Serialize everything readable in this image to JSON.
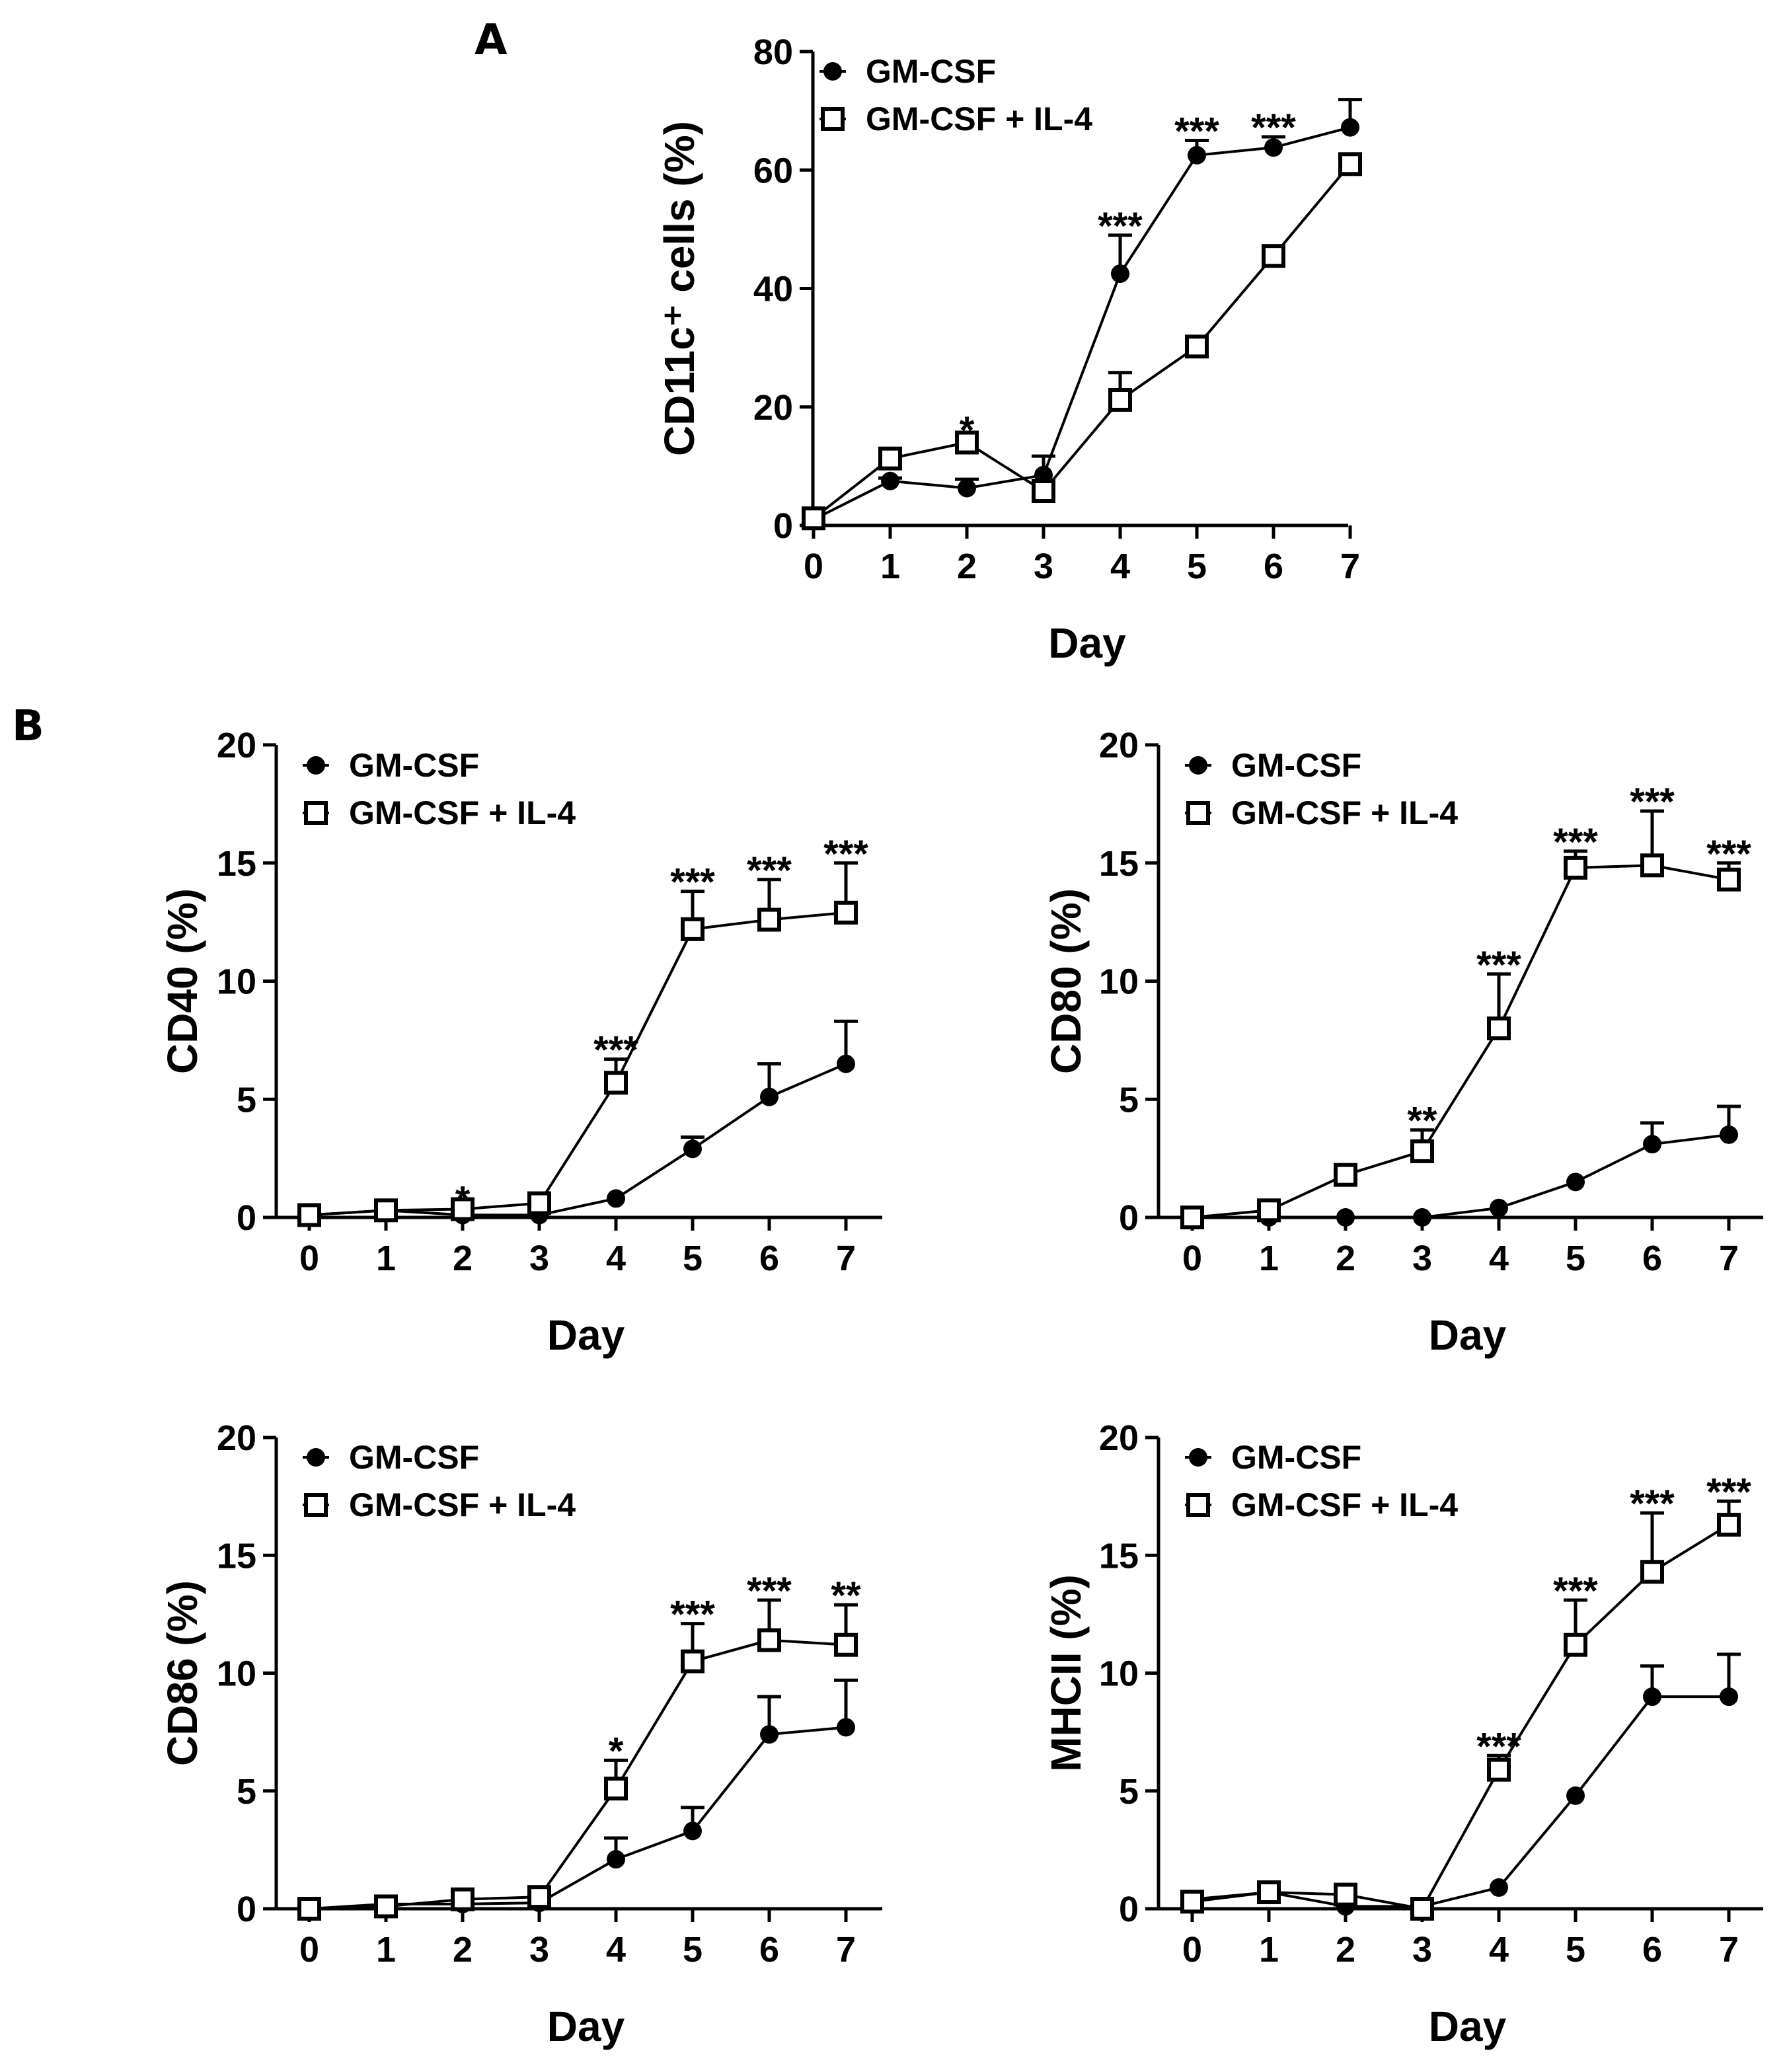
{
  "figure": {
    "panel_a_label": "A",
    "panel_b_label": "B"
  },
  "colors": {
    "ink": "#000000",
    "background": "#ffffff"
  },
  "chart_data": [
    {
      "id": "cd11c",
      "type": "line",
      "panel": "A",
      "xlabel": "Day",
      "ylabel": "CD11c⁺ cells (%)",
      "ylim": [
        0,
        80
      ],
      "yticks": [
        0,
        20,
        40,
        60,
        80
      ],
      "x": [
        0,
        1,
        2,
        3,
        4,
        5,
        6,
        7
      ],
      "series": [
        {
          "name": "GM-CSF",
          "marker": "filled-circle",
          "values": [
            1,
            7.5,
            6.3,
            8.5,
            42.5,
            62.5,
            63.8,
            67.2
          ],
          "errors": [
            0.5,
            0.5,
            1.5,
            3.2,
            6.5,
            2.5,
            1.8,
            4.7
          ]
        },
        {
          "name": "GM-CSF + IL-4",
          "marker": "open-square",
          "values": [
            1.2,
            11.3,
            14,
            5.8,
            21.2,
            30.2,
            45.5,
            61
          ],
          "errors": [
            0.5,
            0.5,
            0.5,
            0.5,
            4.6,
            1.5,
            0.5,
            0.5
          ]
        }
      ],
      "annotations": [
        {
          "x": 2,
          "text": "*"
        },
        {
          "x": 4,
          "text": "***"
        },
        {
          "x": 5,
          "text": "***"
        },
        {
          "x": 6,
          "text": "***"
        }
      ]
    },
    {
      "id": "cd40",
      "type": "line",
      "panel": "B",
      "xlabel": "Day",
      "ylabel": "CD40 (%)",
      "ylim": [
        0,
        20
      ],
      "yticks": [
        0,
        5,
        10,
        15,
        20
      ],
      "x": [
        0,
        1,
        2,
        3,
        4,
        5,
        6,
        7
      ],
      "series": [
        {
          "name": "GM-CSF",
          "marker": "filled-circle",
          "values": [
            0.1,
            0.3,
            0.1,
            0.1,
            0.8,
            2.9,
            5.1,
            6.5
          ],
          "errors": [
            0,
            0,
            0,
            0,
            0,
            0.5,
            1.4,
            1.8
          ]
        },
        {
          "name": "GM-CSF + IL-4",
          "marker": "open-square",
          "values": [
            0.1,
            0.3,
            0.35,
            0.6,
            5.7,
            12.2,
            12.6,
            12.9
          ],
          "errors": [
            0,
            0,
            0,
            0,
            1.0,
            1.6,
            1.7,
            2.1
          ]
        }
      ],
      "annotations": [
        {
          "x": 2,
          "text": "*"
        },
        {
          "x": 4,
          "text": "***"
        },
        {
          "x": 5,
          "text": "***"
        },
        {
          "x": 6,
          "text": "***"
        },
        {
          "x": 7,
          "text": "***"
        }
      ]
    },
    {
      "id": "cd80",
      "type": "line",
      "panel": "B",
      "xlabel": "Day",
      "ylabel": "CD80 (%)",
      "ylim": [
        0,
        20
      ],
      "yticks": [
        0,
        5,
        10,
        15,
        20
      ],
      "x": [
        0,
        1,
        2,
        3,
        4,
        5,
        6,
        7
      ],
      "series": [
        {
          "name": "GM-CSF",
          "marker": "filled-circle",
          "values": [
            0,
            0,
            0,
            0,
            0.4,
            1.5,
            3.1,
            3.5
          ],
          "errors": [
            0,
            0,
            0,
            0,
            0,
            0,
            0.9,
            1.2
          ]
        },
        {
          "name": "GM-CSF + IL-4",
          "marker": "open-square",
          "values": [
            0,
            0.3,
            1.8,
            2.8,
            8.0,
            14.8,
            14.9,
            14.3
          ],
          "errors": [
            0,
            0,
            0,
            0.9,
            2.3,
            0.7,
            2.3,
            0.7
          ]
        }
      ],
      "annotations": [
        {
          "x": 3,
          "text": "**"
        },
        {
          "x": 4,
          "text": "***"
        },
        {
          "x": 5,
          "text": "***"
        },
        {
          "x": 6,
          "text": "***"
        },
        {
          "x": 7,
          "text": "***"
        }
      ]
    },
    {
      "id": "cd86",
      "type": "line",
      "panel": "B",
      "xlabel": "Day",
      "ylabel": "CD86 (%)",
      "ylim": [
        0,
        20
      ],
      "yticks": [
        0,
        5,
        10,
        15,
        20
      ],
      "x": [
        0,
        1,
        2,
        3,
        4,
        5,
        6,
        7
      ],
      "series": [
        {
          "name": "GM-CSF",
          "marker": "filled-circle",
          "values": [
            0,
            0.2,
            0.2,
            0.25,
            2.1,
            3.3,
            7.4,
            7.7
          ],
          "errors": [
            0,
            0,
            0,
            0,
            0.9,
            1.0,
            1.6,
            2.0
          ]
        },
        {
          "name": "GM-CSF + IL-4",
          "marker": "open-square",
          "values": [
            0,
            0.1,
            0.4,
            0.5,
            5.1,
            10.5,
            11.4,
            11.2
          ],
          "errors": [
            0,
            0,
            0,
            0,
            1.2,
            1.6,
            1.7,
            1.7
          ]
        }
      ],
      "annotations": [
        {
          "x": 4,
          "text": "*"
        },
        {
          "x": 5,
          "text": "***"
        },
        {
          "x": 6,
          "text": "***"
        },
        {
          "x": 7,
          "text": "**"
        }
      ]
    },
    {
      "id": "mhcii",
      "type": "line",
      "panel": "B",
      "xlabel": "Day",
      "ylabel": "MHCII (%)",
      "ylim": [
        0,
        20
      ],
      "yticks": [
        0,
        5,
        10,
        15,
        20
      ],
      "x": [
        0,
        1,
        2,
        3,
        4,
        5,
        6,
        7
      ],
      "series": [
        {
          "name": "GM-CSF",
          "marker": "filled-circle",
          "values": [
            0.4,
            0.7,
            0.1,
            0.1,
            0.9,
            4.8,
            9.0,
            9.0
          ],
          "errors": [
            0,
            0,
            0,
            0,
            0,
            0,
            1.3,
            1.8
          ]
        },
        {
          "name": "GM-CSF + IL-4",
          "marker": "open-square",
          "values": [
            0.3,
            0.7,
            0.6,
            0,
            5.9,
            11.2,
            14.3,
            16.3
          ],
          "errors": [
            0,
            0,
            0,
            0,
            0.6,
            1.9,
            2.5,
            1.0
          ]
        }
      ],
      "annotations": [
        {
          "x": 4,
          "text": "***"
        },
        {
          "x": 5,
          "text": "***"
        },
        {
          "x": 6,
          "text": "***"
        },
        {
          "x": 7,
          "text": "***"
        }
      ]
    }
  ]
}
